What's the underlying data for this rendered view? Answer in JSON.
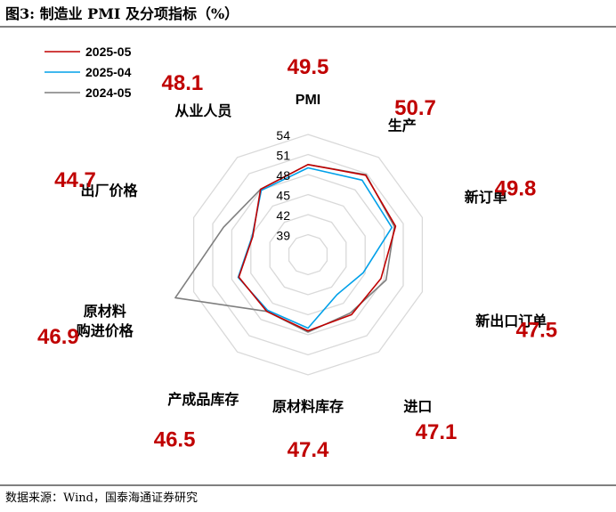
{
  "header": {
    "title": "图3:  制造业 PMI 及分项指标（%）"
  },
  "footer": {
    "source": "数据来源：Wind，国泰海通证券研究"
  },
  "colors": {
    "series_2025_05": "#c00000",
    "series_2025_04": "#00a0e9",
    "series_2024_05": "#7f7f7f",
    "grid": "#d9d9d9",
    "value_label": "#c00000"
  },
  "chart_data": {
    "type": "radar",
    "categories": [
      "PMI",
      "生产",
      "新订单",
      "新出口订单",
      "进口",
      "原材料库存",
      "产成品库存",
      "原材料购进价格",
      "出厂价格",
      "从业人员"
    ],
    "category_display": [
      [
        "PMI"
      ],
      [
        "生产"
      ],
      [
        "新订单"
      ],
      [
        "新出口订单"
      ],
      [
        "进口"
      ],
      [
        "原材料库存"
      ],
      [
        "产成品库存"
      ],
      [
        "原材料",
        "购进价格"
      ],
      [
        "出厂价格"
      ],
      [
        "从业人员"
      ]
    ],
    "value_labels": [
      "49.5",
      "50.7",
      "49.8",
      "47.5",
      "47.1",
      "47.4",
      "46.5",
      "46.9",
      "44.7",
      "48.1"
    ],
    "rlim": [
      36,
      54
    ],
    "ticks": [
      39,
      42,
      45,
      48,
      51,
      54
    ],
    "grid": true,
    "legend_position": "top-left",
    "series": [
      {
        "name": "2025-05",
        "values": [
          49.5,
          50.7,
          49.8,
          47.5,
          47.1,
          47.4,
          46.5,
          46.9,
          44.7,
          48.1
        ]
      },
      {
        "name": "2025-04",
        "values": [
          49.0,
          49.8,
          49.2,
          44.7,
          43.4,
          47.0,
          46.3,
          47.0,
          44.8,
          47.9
        ]
      },
      {
        "name": "2024-05",
        "values": [
          49.5,
          50.8,
          49.6,
          48.3,
          46.8,
          47.6,
          46.5,
          56.9,
          49.3,
          48.1
        ]
      }
    ]
  }
}
